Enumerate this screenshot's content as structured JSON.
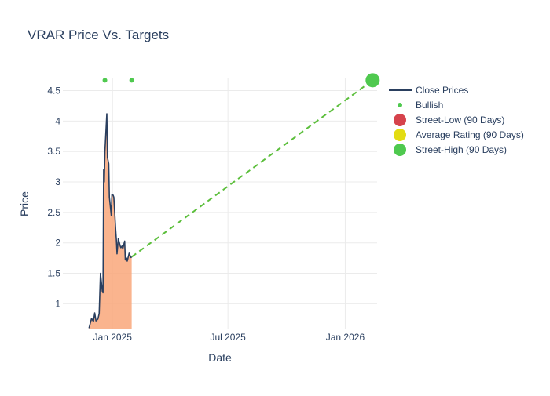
{
  "chart_data": {
    "type": "line",
    "title": "VRAR Price Vs. Targets",
    "xlabel": "Date",
    "ylabel": "Price",
    "x_ticks": [
      "2025-01-01",
      "2025-07-01",
      "2026-01-01"
    ],
    "x_tick_labels": [
      "Jan 2025",
      "Jul 2025",
      "Jan 2026"
    ],
    "y_ticks": [
      1,
      1.5,
      2,
      2.5,
      3,
      3.5,
      4,
      4.5
    ],
    "y_tick_labels": [
      "1",
      "1.5",
      "2",
      "2.5",
      "3",
      "3.5",
      "4",
      "4.5"
    ],
    "xlim": [
      "2024-10-15",
      "2026-02-20"
    ],
    "ylim": [
      0.58,
      4.7
    ],
    "grid": true,
    "legend_position": "top-right",
    "series": [
      {
        "name": "Close Prices",
        "kind": "line-area",
        "color": "#2a3f5f",
        "fill_color": "#f9a77a",
        "points": [
          [
            "2024-11-25",
            0.6
          ],
          [
            "2024-11-27",
            0.68
          ],
          [
            "2024-11-29",
            0.76
          ],
          [
            "2024-12-02",
            0.71
          ],
          [
            "2024-12-04",
            0.85
          ],
          [
            "2024-12-06",
            0.72
          ],
          [
            "2024-12-09",
            0.75
          ],
          [
            "2024-12-11",
            0.84
          ],
          [
            "2024-12-13",
            1.5
          ],
          [
            "2024-12-16",
            1.2
          ],
          [
            "2024-12-17",
            1.18
          ],
          [
            "2024-12-18",
            3.2
          ],
          [
            "2024-12-19",
            3.0
          ],
          [
            "2024-12-20",
            3.5
          ],
          [
            "2024-12-23",
            4.12
          ],
          [
            "2024-12-24",
            3.4
          ],
          [
            "2024-12-26",
            3.3
          ],
          [
            "2024-12-27",
            2.75
          ],
          [
            "2024-12-30",
            2.45
          ],
          [
            "2024-12-31",
            2.8
          ],
          [
            "2025-01-02",
            2.78
          ],
          [
            "2025-01-03",
            2.75
          ],
          [
            "2025-01-06",
            2.2
          ],
          [
            "2025-01-07",
            2.05
          ],
          [
            "2025-01-08",
            1.82
          ],
          [
            "2025-01-10",
            2.07
          ],
          [
            "2025-01-13",
            1.95
          ],
          [
            "2025-01-14",
            1.92
          ],
          [
            "2025-01-16",
            1.95
          ],
          [
            "2025-01-17",
            1.9
          ],
          [
            "2025-01-20",
            2.03
          ],
          [
            "2025-01-21",
            1.72
          ],
          [
            "2025-01-23",
            1.75
          ],
          [
            "2025-01-24",
            1.7
          ],
          [
            "2025-01-27",
            1.83
          ],
          [
            "2025-01-29",
            1.78
          ],
          [
            "2025-01-30",
            1.76
          ],
          [
            "2025-01-31",
            1.77
          ]
        ]
      },
      {
        "name": "Bullish",
        "kind": "markers",
        "color": "#4fc94f",
        "points": [
          [
            "2024-12-20",
            4.67
          ],
          [
            "2025-01-31",
            4.67
          ]
        ]
      },
      {
        "name": "Street-Low (90 Days)",
        "kind": "marker-large",
        "color": "#d6434c",
        "points": []
      },
      {
        "name": "Average Rating (90 Days)",
        "kind": "marker-large",
        "color": "#e3dc12",
        "points": []
      },
      {
        "name": "Street-High (90 Days)",
        "kind": "marker-large",
        "color": "#4fc94f",
        "points": [
          [
            "2026-02-13",
            4.67
          ]
        ]
      }
    ],
    "target_line": {
      "color": "#5cbf3c",
      "from": [
        "2025-01-31",
        1.77
      ],
      "to": [
        "2026-02-13",
        4.67
      ]
    }
  }
}
